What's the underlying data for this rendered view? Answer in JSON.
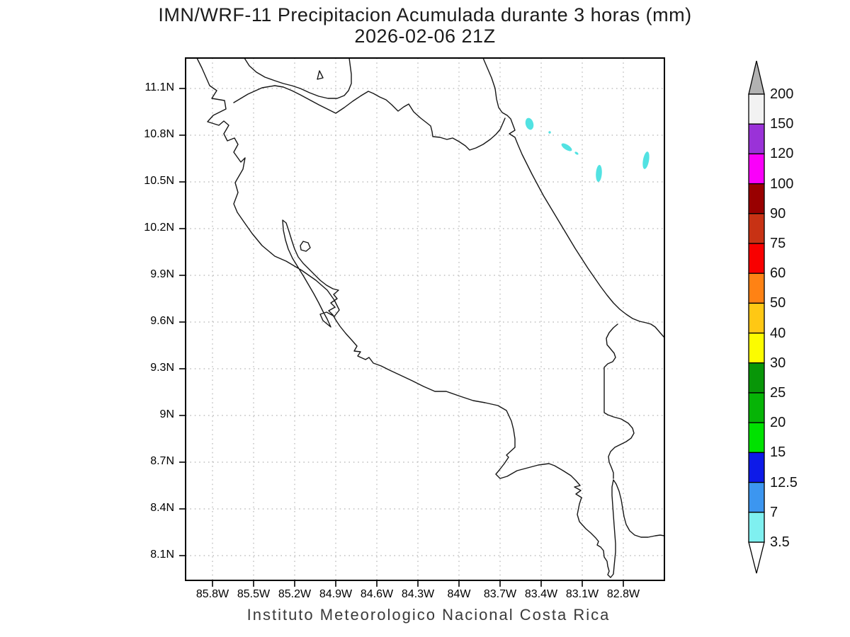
{
  "title": {
    "line1": "IMN/WRF-11 Precipitacion Acumulada durante 3 horas (mm)",
    "line2": "2026-02-06 21Z"
  },
  "caption": "Instituto Meteorologico Nacional Costa Rica",
  "axes": {
    "lat_labels": [
      "11.1N",
      "10.8N",
      "10.5N",
      "10.2N",
      "9.9N",
      "9.6N",
      "9.3N",
      "9N",
      "8.7N",
      "8.4N",
      "8.1N"
    ],
    "lon_labels": [
      "85.8W",
      "85.5W",
      "85.2W",
      "84.9W",
      "84.6W",
      "84.3W",
      "84W",
      "83.7W",
      "83.4W",
      "83.1W",
      "82.8W"
    ]
  },
  "colorbar": {
    "tick_labels": [
      "200",
      "150",
      "120",
      "100",
      "90",
      "75",
      "60",
      "50",
      "40",
      "30",
      "25",
      "20",
      "15",
      "12.5",
      "7",
      "3.5"
    ],
    "segment_colors_top_to_bottom": [
      "#f2f2f2",
      "#9a32d8",
      "#fa00fa",
      "#990000",
      "#c83214",
      "#f80000",
      "#ff8214",
      "#ffc814",
      "#fcfc00",
      "#089608",
      "#06b406",
      "#00e200",
      "#0d1ae8",
      "#3c96f0",
      "#7ff0f0"
    ],
    "arrow_top_color": "#b2b2b2",
    "arrow_bottom_color": "#ffffff",
    "outline_color": "#000000"
  },
  "map": {
    "coast_color": "#161616",
    "grid_color": "#c0c0c0",
    "frame_color": "#000000",
    "precip_fill": "#52e2e2"
  },
  "chart_data": {
    "type": "map",
    "units": "mm",
    "lon_ticks": [
      "85.8W",
      "85.5W",
      "85.2W",
      "84.9W",
      "84.6W",
      "84.3W",
      "84W",
      "83.7W",
      "83.4W",
      "83.1W",
      "82.8W"
    ],
    "lat_ticks": [
      "11.1N",
      "10.8N",
      "10.5N",
      "10.2N",
      "9.9N",
      "9.6N",
      "9.3N",
      "9N",
      "8.7N",
      "8.4N",
      "8.1N"
    ],
    "shaded_levels": [
      3.5,
      7,
      12.5,
      15,
      20,
      25,
      30,
      40,
      50,
      60,
      75,
      90,
      100,
      120,
      150,
      200
    ],
    "precip_features": [
      {
        "lon": "83.48W",
        "lat": "10.87N",
        "value_bin_mm": "3.5-7"
      },
      {
        "lon": "83.34W",
        "lat": "10.82N",
        "value_bin_mm": "3.5-7"
      },
      {
        "lon": "83.21W",
        "lat": "10.72N",
        "value_bin_mm": "3.5-7"
      },
      {
        "lon": "83.14W",
        "lat": "10.69N",
        "value_bin_mm": "3.5-7"
      },
      {
        "lon": "82.98W",
        "lat": "10.55N",
        "value_bin_mm": "3.5-7"
      },
      {
        "lon": "82.63W",
        "lat": "10.64N",
        "value_bin_mm": "3.5-7"
      }
    ]
  }
}
